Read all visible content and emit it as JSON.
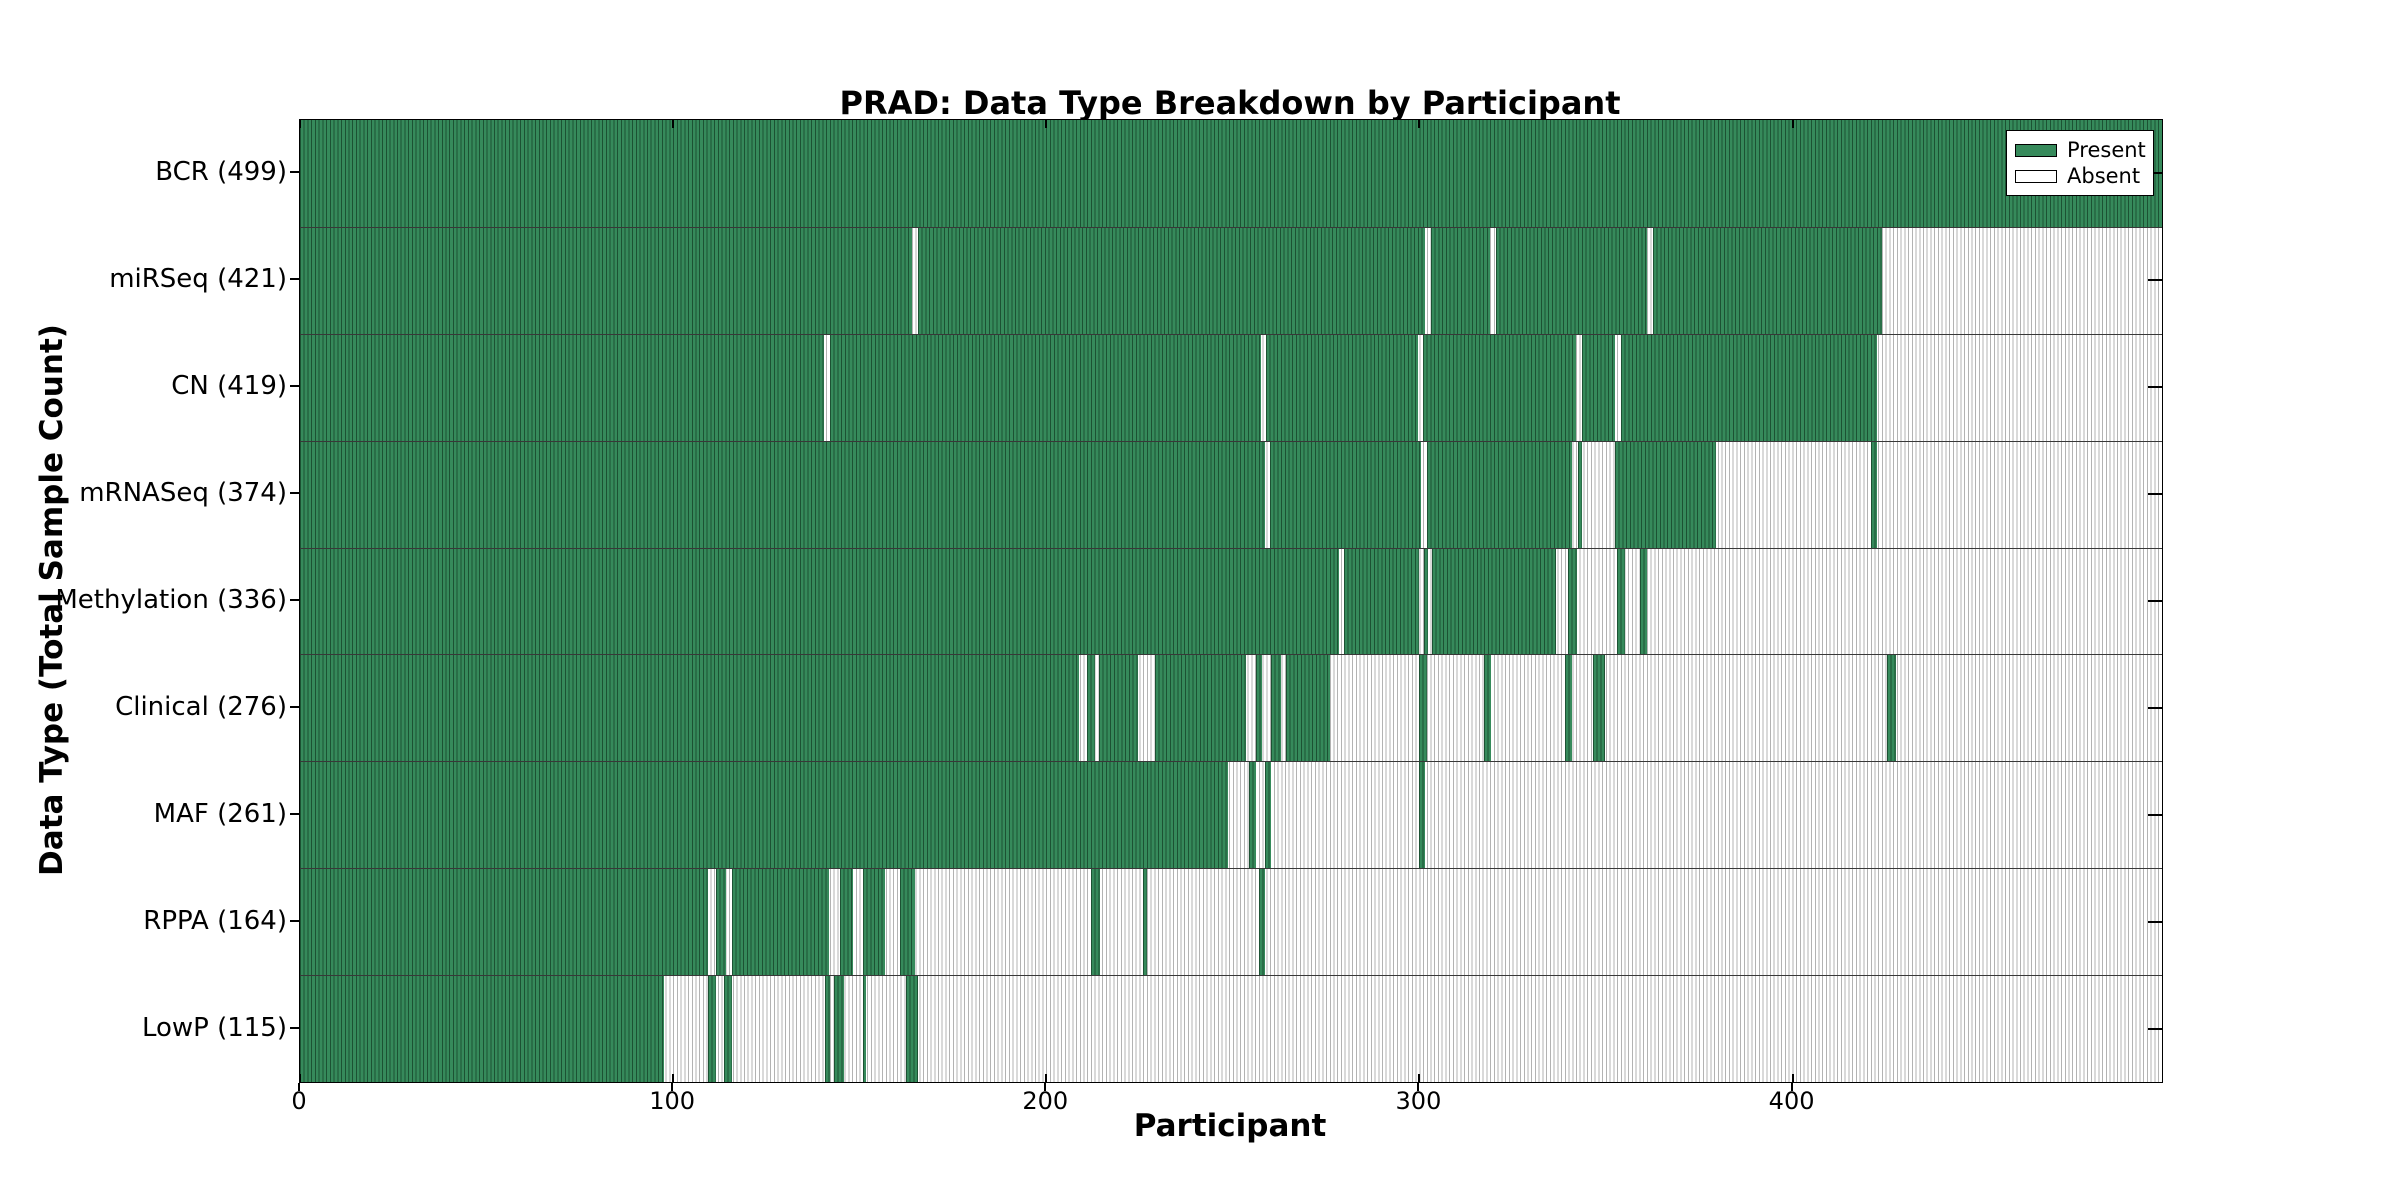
{
  "title": "PRAD: Data Type Breakdown by Participant",
  "x_axis": {
    "label": "Participant",
    "ticks": [
      "0",
      "100",
      "200",
      "300",
      "400"
    ],
    "tick_values": [
      0,
      100,
      200,
      300,
      400
    ],
    "min": 0,
    "max": 499
  },
  "y_axis": {
    "label": "Data Type (Total Sample Count)"
  },
  "legend": {
    "present_label": "Present",
    "absent_label": "Absent"
  },
  "colors": {
    "present_fill": "#368a5b",
    "present_edge": "#1c5233",
    "absent_fill": "#ffffff",
    "absent_edge": "#b3b3b3",
    "row_divider": "#383838",
    "frame": "#000000"
  },
  "chart_data": {
    "type": "heatmap",
    "title": "PRAD: Data Type Breakdown by Participant",
    "xlabel": "Participant",
    "ylabel": "Data Type (Total Sample Count)",
    "x_range": [
      0,
      499
    ],
    "grid": false,
    "legend_position": "upper right",
    "legend_entries": [
      {
        "label": "Present",
        "color": "#368a5b"
      },
      {
        "label": "Absent",
        "color": "#ffffff"
      }
    ],
    "cell_states": [
      "present",
      "absent"
    ],
    "rows": [
      {
        "label": "BCR (499)",
        "data_type": "BCR",
        "total_samples": 499,
        "present_intervals": [
          [
            0,
            499
          ]
        ]
      },
      {
        "label": "miRSeq (421)",
        "data_type": "miRSeq",
        "total_samples": 421,
        "present_intervals": [
          [
            0,
            164
          ],
          [
            165.5,
            301.5
          ],
          [
            303,
            319
          ],
          [
            320.5,
            361
          ],
          [
            362.5,
            424
          ]
        ]
      },
      {
        "label": "CN (419)",
        "data_type": "CN",
        "total_samples": 419,
        "present_intervals": [
          [
            0,
            140.5
          ],
          [
            142,
            257.5
          ],
          [
            259,
            299.5
          ],
          [
            301,
            342
          ],
          [
            343.5,
            352.5
          ],
          [
            354,
            422.5
          ]
        ]
      },
      {
        "label": "mRNASeq (374)",
        "data_type": "mRNASeq",
        "total_samples": 374,
        "present_intervals": [
          [
            0,
            258.5
          ],
          [
            260,
            300.5
          ],
          [
            302,
            340.8
          ],
          [
            342.4,
            343.7
          ],
          [
            352.3,
            379.5
          ],
          [
            421,
            422.7
          ]
        ]
      },
      {
        "label": "Methylation (336)",
        "data_type": "Methylation",
        "total_samples": 336,
        "present_intervals": [
          [
            0,
            278.4
          ],
          [
            279.9,
            300
          ],
          [
            301.2,
            302.2
          ],
          [
            303.4,
            336.5
          ],
          [
            339.8,
            342.1
          ],
          [
            353,
            355
          ],
          [
            359,
            361
          ]
        ]
      },
      {
        "label": "Clinical (276)",
        "data_type": "Clinical",
        "total_samples": 276,
        "present_intervals": [
          [
            0,
            208.8
          ],
          [
            210.8,
            213.1
          ],
          [
            214.1,
            224.7
          ],
          [
            229,
            253.6
          ],
          [
            256.2,
            257.9
          ],
          [
            260.2,
            262.9
          ],
          [
            264.2,
            276.1
          ],
          [
            300,
            302
          ],
          [
            317.3,
            319.2
          ],
          [
            339.1,
            340.8
          ],
          [
            346.4,
            349.7
          ],
          [
            425.4,
            427.7
          ]
        ]
      },
      {
        "label": "MAF (261)",
        "data_type": "MAF",
        "total_samples": 261,
        "present_intervals": [
          [
            0,
            248.6
          ],
          [
            254.2,
            256.2
          ],
          [
            258.5,
            260.2
          ],
          [
            300,
            301.6
          ]
        ]
      },
      {
        "label": "RPPA (164)",
        "data_type": "RPPA",
        "total_samples": 164,
        "present_intervals": [
          [
            0,
            109.3
          ],
          [
            111.6,
            114.3
          ],
          [
            115.9,
            141.8
          ],
          [
            144.8,
            148.1
          ],
          [
            150.8,
            156.7
          ],
          [
            160.7,
            164.7
          ],
          [
            212.1,
            214.4
          ],
          [
            226,
            227
          ],
          [
            256.9,
            258.5
          ]
        ]
      },
      {
        "label": "LowP (115)",
        "data_type": "LowP",
        "total_samples": 115,
        "present_intervals": [
          [
            0,
            97.5
          ],
          [
            109.3,
            111.6
          ],
          [
            113.6,
            115.9
          ],
          [
            140.8,
            142.1
          ],
          [
            143.1,
            145.8
          ],
          [
            150.8,
            151.8
          ],
          [
            162.4,
            165.7
          ]
        ]
      }
    ]
  }
}
